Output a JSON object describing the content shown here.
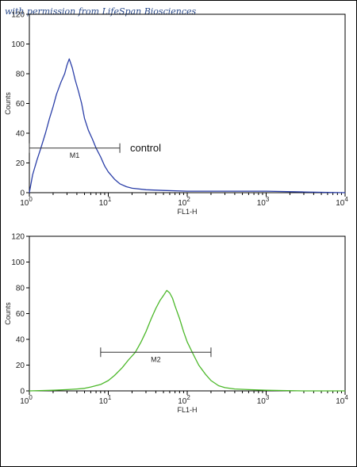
{
  "credit": "with permission from LifeSpan Biosciences",
  "chart_data": [
    {
      "type": "line",
      "xscale": "log",
      "xlim": [
        1,
        10000
      ],
      "ylim": [
        0,
        120
      ],
      "xlabel": "FL1-H",
      "ylabel": "Counts",
      "yticks": [
        "0",
        "20",
        "40",
        "60",
        "80",
        "100",
        "120"
      ],
      "xticks": [
        {
          "base": "10",
          "exp": "0"
        },
        {
          "base": "10",
          "exp": "1"
        },
        {
          "base": "10",
          "exp": "2"
        },
        {
          "base": "10",
          "exp": "3"
        },
        {
          "base": "10",
          "exp": "4"
        }
      ],
      "color": "#2b3fa8",
      "annotation": "control",
      "marker": {
        "label": "M1",
        "x_start": 1.0,
        "x_end": 14,
        "y": 30
      },
      "series": [
        {
          "x": [
            1.0,
            1.1,
            1.25,
            1.4,
            1.6,
            1.8,
            2.0,
            2.2,
            2.5,
            2.8,
            3.0,
            3.2,
            3.5,
            3.8,
            4.2,
            4.6,
            5.0,
            5.6,
            6.3,
            7.0,
            8.0,
            9.0,
            10,
            12,
            14,
            17,
            20,
            30,
            50,
            100,
            300,
            1000,
            3000,
            10000
          ],
          "y": [
            0,
            12,
            22,
            30,
            40,
            50,
            58,
            66,
            74,
            80,
            86,
            90,
            84,
            76,
            68,
            60,
            50,
            42,
            36,
            30,
            24,
            18,
            14,
            9,
            6,
            4,
            3,
            2,
            1.5,
            1,
            1,
            1,
            0.5,
            0
          ]
        }
      ]
    },
    {
      "type": "line",
      "xscale": "log",
      "xlim": [
        1,
        10000
      ],
      "ylim": [
        0,
        120
      ],
      "xlabel": "FL1-H",
      "ylabel": "Counts",
      "yticks": [
        "0",
        "20",
        "40",
        "60",
        "80",
        "100",
        "120"
      ],
      "xticks": [
        {
          "base": "10",
          "exp": "0"
        },
        {
          "base": "10",
          "exp": "1"
        },
        {
          "base": "10",
          "exp": "2"
        },
        {
          "base": "10",
          "exp": "3"
        },
        {
          "base": "10",
          "exp": "4"
        }
      ],
      "color": "#4cb82a",
      "marker": {
        "label": "M2",
        "x_start": 8,
        "x_end": 200,
        "y": 30
      },
      "series": [
        {
          "x": [
            1.0,
            2,
            3,
            4,
            5,
            6,
            8,
            10,
            12,
            15,
            18,
            22,
            26,
            30,
            35,
            40,
            45,
            50,
            55,
            60,
            65,
            70,
            80,
            90,
            100,
            120,
            140,
            170,
            200,
            250,
            300,
            400,
            600,
            1000,
            3000,
            10000
          ],
          "y": [
            0,
            0.5,
            1,
            1.5,
            2,
            3,
            5,
            8,
            12,
            18,
            24,
            30,
            38,
            46,
            56,
            64,
            70,
            74,
            78,
            76,
            72,
            66,
            56,
            46,
            38,
            28,
            20,
            13,
            8,
            4,
            2.5,
            1.5,
            1,
            0.5,
            0,
            0
          ]
        }
      ]
    }
  ]
}
